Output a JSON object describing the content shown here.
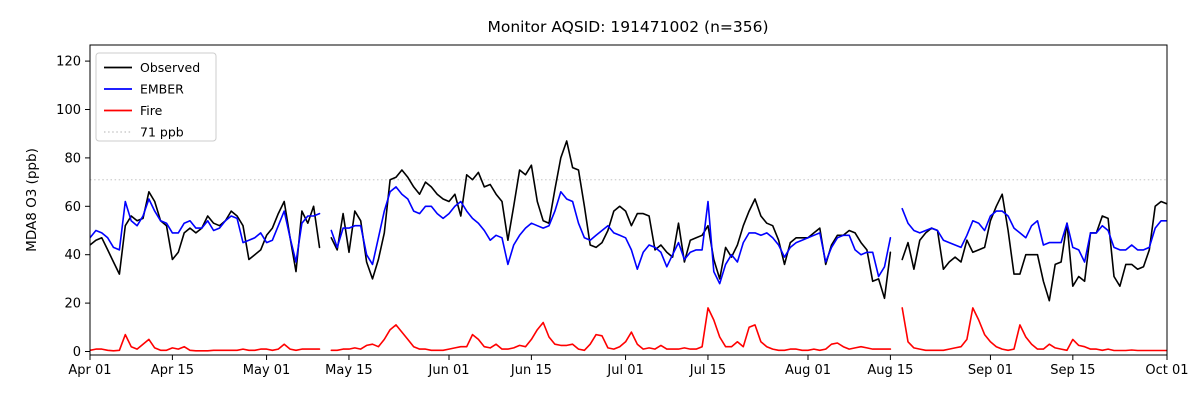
{
  "page": {
    "background": "#ffffff"
  },
  "chart_data": {
    "type": "line",
    "title": "Monitor AQSID: 191471002 (n=356)",
    "ylabel": "MDA8 O3 (ppb)",
    "xlabel": "",
    "grid": false,
    "yticks": [
      0,
      20,
      40,
      60,
      80,
      100,
      120
    ],
    "ylim": [
      -2,
      127
    ],
    "xticks": [
      {
        "index": 0,
        "label": "Apr 01"
      },
      {
        "index": 14,
        "label": "Apr 15"
      },
      {
        "index": 30,
        "label": "May 01"
      },
      {
        "index": 44,
        "label": "May 15"
      },
      {
        "index": 61,
        "label": "Jun 01"
      },
      {
        "index": 75,
        "label": "Jun 15"
      },
      {
        "index": 91,
        "label": "Jul 01"
      },
      {
        "index": 105,
        "label": "Jul 15"
      },
      {
        "index": 122,
        "label": "Aug 01"
      },
      {
        "index": 136,
        "label": "Aug 15"
      },
      {
        "index": 153,
        "label": "Sep 01"
      },
      {
        "index": 167,
        "label": "Sep 15"
      },
      {
        "index": 183,
        "label": "Oct 01"
      }
    ],
    "x_range_days": 184,
    "threshold": {
      "value": 71,
      "label": "71 ppb",
      "color": "#d3d3d3",
      "style": "dotted"
    },
    "legend": {
      "position": "upper left",
      "entries": [
        "Observed",
        "EMBER",
        "Fire",
        "71 ppb"
      ]
    },
    "series": [
      {
        "name": "Observed",
        "color": "#000000",
        "style": "solid",
        "values": [
          44,
          46,
          47,
          42,
          37,
          32,
          52,
          56,
          54,
          55,
          66,
          62,
          54,
          52,
          38,
          41,
          49,
          51,
          49,
          51,
          56,
          53,
          52,
          54,
          58,
          56,
          52,
          38,
          40,
          42,
          48,
          51,
          57,
          62,
          47,
          33,
          58,
          53,
          60,
          43,
          null,
          47,
          42,
          57,
          41,
          58,
          54,
          37,
          30,
          38,
          49,
          71,
          72,
          75,
          72,
          68,
          65,
          70,
          68,
          65,
          63,
          62,
          65,
          56,
          73,
          71,
          74,
          68,
          69,
          65,
          62,
          46,
          60,
          75,
          73,
          77,
          62,
          54,
          53,
          67,
          80,
          87,
          76,
          75,
          60,
          44,
          43,
          45,
          50,
          58,
          60,
          58,
          52,
          57,
          57,
          56,
          42,
          44,
          41,
          39,
          53,
          37,
          46,
          47,
          48,
          52,
          38,
          30,
          43,
          39,
          44,
          52,
          58,
          63,
          56,
          53,
          52,
          46,
          36,
          45,
          47,
          47,
          47,
          49,
          51,
          36,
          44,
          48,
          48,
          50,
          49,
          45,
          42,
          29,
          30,
          22,
          41,
          null,
          38,
          45,
          34,
          46,
          49,
          51,
          50,
          34,
          37,
          39,
          37,
          46,
          41,
          42,
          43,
          54,
          60,
          65,
          50,
          32,
          32,
          40,
          40,
          40,
          29,
          21,
          36,
          37,
          53,
          27,
          31,
          29,
          49,
          49,
          56,
          55,
          31,
          27,
          36,
          36,
          34,
          35,
          42,
          60,
          62,
          61
        ]
      },
      {
        "name": "EMBER",
        "color": "#0000ff",
        "style": "solid",
        "values": [
          47,
          50,
          49,
          47,
          43,
          42,
          62,
          54,
          52,
          56,
          63,
          58,
          54,
          53,
          49,
          49,
          53,
          54,
          51,
          51,
          54,
          50,
          51,
          54,
          56,
          55,
          45,
          46,
          47,
          49,
          45,
          46,
          52,
          58,
          47,
          37,
          53,
          56,
          56,
          57,
          null,
          50,
          43,
          51,
          51,
          52,
          52,
          40,
          36,
          47,
          58,
          66,
          68,
          65,
          63,
          58,
          57,
          60,
          60,
          57,
          55,
          57,
          60,
          62,
          58,
          55,
          53,
          50,
          46,
          48,
          47,
          36,
          44,
          48,
          51,
          53,
          52,
          51,
          52,
          58,
          66,
          63,
          62,
          53,
          47,
          46,
          48,
          50,
          52,
          49,
          48,
          47,
          42,
          34,
          41,
          44,
          43,
          41,
          35,
          40,
          45,
          38,
          41,
          42,
          42,
          62,
          33,
          28,
          36,
          40,
          37,
          45,
          49,
          49,
          48,
          49,
          47,
          44,
          39,
          43,
          45,
          46,
          47,
          48,
          49,
          37,
          43,
          47,
          48,
          48,
          42,
          40,
          41,
          41,
          31,
          35,
          47,
          null,
          59,
          53,
          50,
          49,
          50,
          51,
          50,
          46,
          45,
          44,
          43,
          48,
          54,
          53,
          50,
          56,
          58,
          58,
          56,
          51,
          49,
          47,
          52,
          54,
          44,
          45,
          45,
          45,
          53,
          43,
          42,
          37,
          49,
          49,
          52,
          50,
          43,
          42,
          42,
          44,
          42,
          42,
          43,
          51,
          54,
          54
        ]
      },
      {
        "name": "Fire",
        "color": "#ff0000",
        "style": "solid",
        "values": [
          0.5,
          1,
          1,
          0.5,
          0.3,
          0.5,
          7,
          2,
          1,
          3,
          5,
          1.5,
          0.5,
          0.5,
          1.5,
          1,
          2,
          0.5,
          0.3,
          0.3,
          0.3,
          0.5,
          0.5,
          0.5,
          0.5,
          0.5,
          1,
          0.5,
          0.5,
          1,
          1,
          0.5,
          1,
          3,
          1,
          0.5,
          1,
          1,
          1,
          1,
          null,
          0.5,
          0.5,
          1,
          1,
          1.5,
          1,
          2.5,
          3,
          2,
          5,
          9,
          11,
          8,
          5,
          2,
          1,
          1,
          0.5,
          0.5,
          0.5,
          1,
          1.5,
          2,
          2,
          7,
          5,
          2,
          1.5,
          3,
          1,
          1,
          1.5,
          2.5,
          2,
          5,
          9,
          12,
          6,
          3,
          2.5,
          2.5,
          3,
          1,
          0.5,
          3,
          7,
          6.5,
          1.5,
          1,
          2,
          4,
          8,
          3,
          1,
          1.5,
          1,
          2.5,
          1,
          1,
          1,
          1.5,
          1,
          1,
          2,
          18,
          13,
          6,
          2,
          2,
          4,
          2,
          10,
          11,
          4,
          2,
          1,
          0.5,
          0.5,
          1,
          1,
          0.5,
          0.5,
          1,
          0.5,
          1,
          3,
          3.5,
          2,
          1,
          1.5,
          2,
          1.5,
          1,
          1,
          1,
          1,
          null,
          18,
          4,
          1.5,
          1,
          0.5,
          0.5,
          0.5,
          0.5,
          1,
          1.5,
          2,
          5,
          18,
          13,
          7,
          4,
          2,
          1,
          0.5,
          1,
          11,
          6,
          3,
          1,
          1,
          3,
          1.5,
          1,
          0.5,
          5,
          2.5,
          2,
          1,
          1,
          0.5,
          1,
          0.4,
          0.4,
          0.4,
          0.6,
          0.4,
          0.4,
          0.4,
          0.4,
          0.4,
          0.4
        ]
      }
    ]
  }
}
